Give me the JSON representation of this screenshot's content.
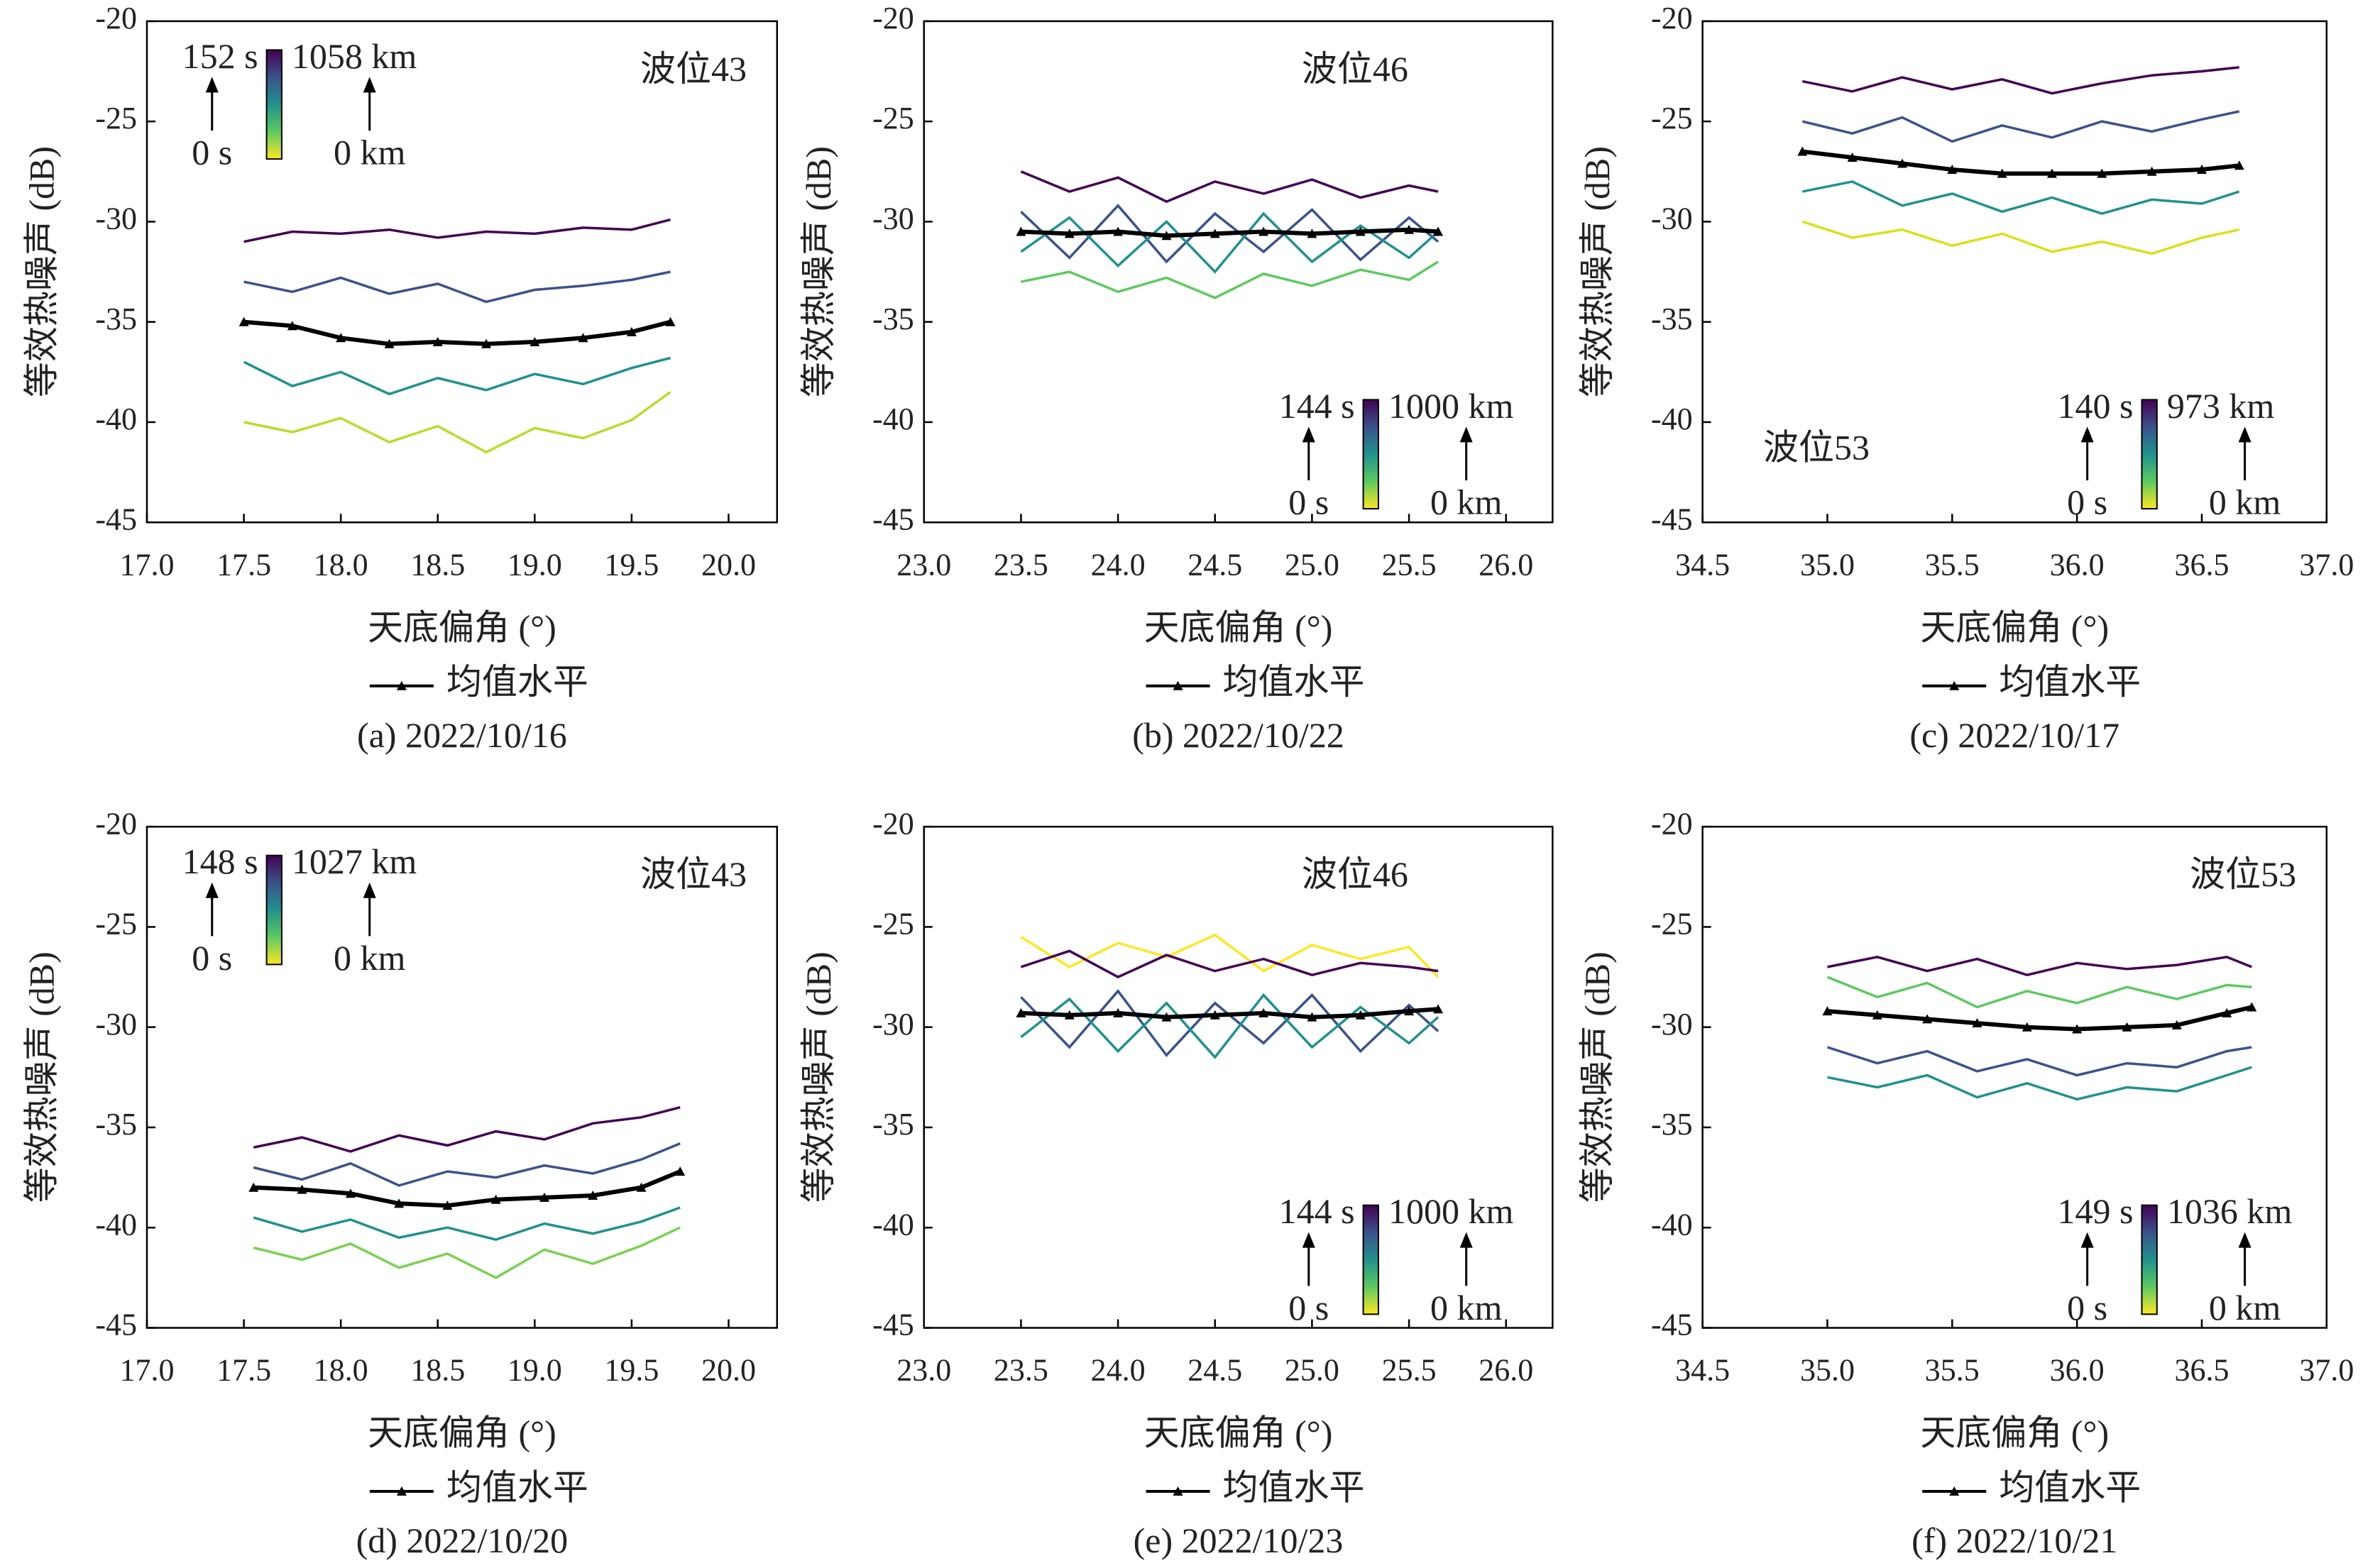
{
  "chart_data": [
    {
      "type": "line",
      "caption": "(a) 2022/10/16",
      "xlabel": "天底偏角 (°)",
      "ylabel": "等效热噪声 (dB)",
      "annotation": "波位43",
      "annotation_position": "top-right",
      "colorbar_labels": [
        "152 s",
        "0 s",
        "1058 km",
        "0 km"
      ],
      "colorbar_position": "top-left",
      "xlim": [
        17,
        20.25
      ],
      "xticks": [
        {
          "value": 17,
          "label": "17.0"
        },
        17.5,
        {
          "value": 18,
          "label": "18.0"
        },
        18.5,
        {
          "value": 19,
          "label": "19.0"
        },
        19.5,
        {
          "value": 20,
          "label": "20.0"
        }
      ],
      "ylim": [
        -45,
        -20
      ],
      "yticks": [
        -45,
        -40,
        -35,
        -30,
        -25,
        -20
      ],
      "x": [
        17.5,
        17.75,
        18,
        18.25,
        18.5,
        18.75,
        19,
        19.25,
        19.5,
        19.7
      ],
      "series": [
        {
          "color": "#440154",
          "values": [
            -31,
            -30.5,
            -30.6,
            -30.4,
            -30.8,
            -30.5,
            -30.6,
            -30.3,
            -30.4,
            -29.9
          ]
        },
        {
          "color": "#3b528b",
          "values": [
            -33,
            -33.5,
            -32.8,
            -33.6,
            -33.1,
            -34,
            -33.4,
            -33.2,
            -32.9,
            -32.5
          ]
        },
        {
          "color": "#21918c",
          "values": [
            -37,
            -38.2,
            -37.5,
            -38.6,
            -37.8,
            -38.4,
            -37.6,
            -38.1,
            -37.3,
            -36.8
          ]
        },
        {
          "color": "#b5de2b",
          "values": [
            -40,
            -40.5,
            -39.8,
            -41,
            -40.2,
            -41.5,
            -40.3,
            -40.8,
            -39.9,
            -38.5
          ]
        },
        {
          "name": "均值水平",
          "color": "#000000",
          "values": [
            -35,
            -35.2,
            -35.8,
            -36.1,
            -36,
            -36.1,
            -36,
            -35.8,
            -35.5,
            -35
          ]
        }
      ]
    },
    {
      "type": "line",
      "caption": "(b) 2022/10/22",
      "xlabel": "天底偏角 (°)",
      "ylabel": "等效热噪声 (dB)",
      "annotation": "波位46",
      "annotation_position": "top",
      "colorbar_labels": [
        "144 s",
        "0 s",
        "1000 km",
        "0 km"
      ],
      "colorbar_position": "bottom-right",
      "xlim": [
        23,
        26.24
      ],
      "xticks": [
        {
          "value": 23,
          "label": "23.0"
        },
        23.5,
        {
          "value": 24,
          "label": "24.0"
        },
        24.5,
        {
          "value": 25,
          "label": "25.0"
        },
        25.5,
        {
          "value": 26,
          "label": "26.0"
        }
      ],
      "ylim": [
        -45,
        -20
      ],
      "yticks": [
        -45,
        -40,
        -35,
        -30,
        -25,
        -20
      ],
      "x": [
        23.5,
        23.75,
        24,
        24.25,
        24.5,
        24.75,
        25,
        25.25,
        25.5,
        25.65
      ],
      "series": [
        {
          "color": "#440154",
          "values": [
            -27.5,
            -28.5,
            -27.8,
            -29,
            -28,
            -28.6,
            -27.9,
            -28.8,
            -28.2,
            -28.5
          ]
        },
        {
          "color": "#3b528b",
          "values": [
            -29.5,
            -31.8,
            -29.2,
            -32,
            -29.6,
            -31.5,
            -29.4,
            -31.9,
            -29.8,
            -31
          ]
        },
        {
          "color": "#21918c",
          "values": [
            -31.5,
            -29.8,
            -32.2,
            -30,
            -32.5,
            -29.6,
            -32,
            -30.2,
            -31.8,
            -30.5
          ]
        },
        {
          "color": "#5ec962",
          "values": [
            -33,
            -32.5,
            -33.5,
            -32.8,
            -33.8,
            -32.6,
            -33.2,
            -32.4,
            -32.9,
            -32
          ]
        },
        {
          "name": "均值水平",
          "color": "#000000",
          "values": [
            -30.5,
            -30.6,
            -30.5,
            -30.7,
            -30.6,
            -30.5,
            -30.6,
            -30.5,
            -30.4,
            -30.5
          ]
        }
      ]
    },
    {
      "type": "line",
      "caption": "(c) 2022/10/17",
      "xlabel": "天底偏角 (°)",
      "ylabel": "等效热噪声 (dB)",
      "annotation": "波位53",
      "annotation_position": "bottom-left",
      "colorbar_labels": [
        "140 s",
        "0 s",
        "973 km",
        "0 km"
      ],
      "colorbar_position": "bottom-right",
      "xlim": [
        34.5,
        37
      ],
      "xticks": [
        34.5,
        {
          "value": 35,
          "label": "35.0"
        },
        35.5,
        {
          "value": 36,
          "label": "36.0"
        },
        36.5,
        {
          "value": 37,
          "label": "37.0"
        }
      ],
      "ylim": [
        -45,
        -20
      ],
      "yticks": [
        -45,
        -40,
        -35,
        -30,
        -25,
        -20
      ],
      "x": [
        34.9,
        35.1,
        35.3,
        35.5,
        35.7,
        35.9,
        36.1,
        36.3,
        36.5,
        36.65
      ],
      "series": [
        {
          "color": "#440154",
          "values": [
            -23,
            -23.5,
            -22.8,
            -23.4,
            -22.9,
            -23.6,
            -23.1,
            -22.7,
            -22.5,
            -22.3
          ]
        },
        {
          "color": "#3b528b",
          "values": [
            -25,
            -25.6,
            -24.8,
            -26,
            -25.2,
            -25.8,
            -25,
            -25.5,
            -24.9,
            -24.5
          ]
        },
        {
          "color": "#21918c",
          "values": [
            -28.5,
            -28,
            -29.2,
            -28.6,
            -29.5,
            -28.8,
            -29.6,
            -28.9,
            -29.1,
            -28.5
          ]
        },
        {
          "color": "#d8e219",
          "values": [
            -30,
            -30.8,
            -30.4,
            -31.2,
            -30.6,
            -31.5,
            -31,
            -31.6,
            -30.8,
            -30.4
          ]
        },
        {
          "name": "均值水平",
          "color": "#000000",
          "values": [
            -26.5,
            -26.8,
            -27.1,
            -27.4,
            -27.6,
            -27.6,
            -27.6,
            -27.5,
            -27.4,
            -27.2
          ]
        }
      ]
    },
    {
      "type": "line",
      "caption": "(d) 2022/10/20",
      "xlabel": "天底偏角 (°)",
      "ylabel": "等效热噪声 (dB)",
      "annotation": "波位43",
      "annotation_position": "top-right",
      "colorbar_labels": [
        "148 s",
        "0 s",
        "1027 km",
        "0 km"
      ],
      "colorbar_position": "top-left",
      "xlim": [
        17,
        20.25
      ],
      "xticks": [
        {
          "value": 17,
          "label": "17.0"
        },
        17.5,
        {
          "value": 18,
          "label": "18.0"
        },
        18.5,
        {
          "value": 19,
          "label": "19.0"
        },
        19.5,
        {
          "value": 20,
          "label": "20.0"
        }
      ],
      "ylim": [
        -45,
        -20
      ],
      "yticks": [
        -45,
        -40,
        -35,
        -30,
        -25,
        -20
      ],
      "x": [
        17.55,
        17.8,
        18.05,
        18.3,
        18.55,
        18.8,
        19.05,
        19.3,
        19.55,
        19.75
      ],
      "series": [
        {
          "color": "#440154",
          "values": [
            -36,
            -35.5,
            -36.2,
            -35.4,
            -35.9,
            -35.2,
            -35.6,
            -34.8,
            -34.5,
            -34
          ]
        },
        {
          "color": "#3b528b",
          "values": [
            -37,
            -37.6,
            -36.8,
            -37.9,
            -37.2,
            -37.5,
            -36.9,
            -37.3,
            -36.6,
            -35.8
          ]
        },
        {
          "color": "#21918c",
          "values": [
            -39.5,
            -40.2,
            -39.6,
            -40.5,
            -40,
            -40.6,
            -39.8,
            -40.3,
            -39.7,
            -39
          ]
        },
        {
          "color": "#7ad151",
          "values": [
            -41,
            -41.6,
            -40.8,
            -42,
            -41.3,
            -42.5,
            -41.1,
            -41.8,
            -40.9,
            -40
          ]
        },
        {
          "name": "均值水平",
          "color": "#000000",
          "values": [
            -38,
            -38.1,
            -38.3,
            -38.8,
            -38.9,
            -38.6,
            -38.5,
            -38.4,
            -38,
            -37.2
          ]
        }
      ]
    },
    {
      "type": "line",
      "caption": "(e) 2022/10/23",
      "xlabel": "天底偏角 (°)",
      "ylabel": "等效热噪声 (dB)",
      "annotation": "波位46",
      "annotation_position": "top",
      "colorbar_labels": [
        "144 s",
        "0 s",
        "1000 km",
        "0 km"
      ],
      "colorbar_position": "bottom-right",
      "xlim": [
        23,
        26.24
      ],
      "xticks": [
        {
          "value": 23,
          "label": "23.0"
        },
        23.5,
        {
          "value": 24,
          "label": "24.0"
        },
        24.5,
        {
          "value": 25,
          "label": "25.0"
        },
        25.5,
        {
          "value": 26,
          "label": "26.0"
        }
      ],
      "ylim": [
        -45,
        -20
      ],
      "yticks": [
        -45,
        -40,
        -35,
        -30,
        -25,
        -20
      ],
      "x": [
        23.5,
        23.75,
        24,
        24.25,
        24.5,
        24.75,
        25,
        25.25,
        25.5,
        25.65
      ],
      "series": [
        {
          "color": "#fde725",
          "values": [
            -25.5,
            -27,
            -25.8,
            -26.5,
            -25.4,
            -27.2,
            -25.9,
            -26.6,
            -26,
            -27.5
          ]
        },
        {
          "color": "#440154",
          "values": [
            -27,
            -26.2,
            -27.5,
            -26.4,
            -27.2,
            -26.6,
            -27.4,
            -26.8,
            -27,
            -27.2
          ]
        },
        {
          "color": "#3b528b",
          "values": [
            -28.5,
            -31,
            -28.2,
            -31.4,
            -28.8,
            -30.8,
            -28.4,
            -31.2,
            -28.9,
            -30.2
          ]
        },
        {
          "color": "#21918c",
          "values": [
            -30.5,
            -28.6,
            -31.2,
            -28.8,
            -31.5,
            -28.4,
            -31,
            -29,
            -30.8,
            -29.5
          ]
        },
        {
          "name": "均值水平",
          "color": "#000000",
          "values": [
            -29.3,
            -29.4,
            -29.3,
            -29.5,
            -29.4,
            -29.3,
            -29.5,
            -29.4,
            -29.2,
            -29.1
          ]
        }
      ]
    },
    {
      "type": "line",
      "caption": "(f) 2022/10/21",
      "xlabel": "天底偏角 (°)",
      "ylabel": "等效热噪声 (dB)",
      "annotation": "波位53",
      "annotation_position": "top-right",
      "colorbar_labels": [
        "149 s",
        "0 s",
        "1036 km",
        "0 km"
      ],
      "colorbar_position": "bottom-right",
      "xlim": [
        34.5,
        37
      ],
      "xticks": [
        34.5,
        {
          "value": 35,
          "label": "35.0"
        },
        35.5,
        {
          "value": 36,
          "label": "36.0"
        },
        36.5,
        {
          "value": 37,
          "label": "37.0"
        }
      ],
      "ylim": [
        -45,
        -20
      ],
      "yticks": [
        -45,
        -40,
        -35,
        -30,
        -25,
        -20
      ],
      "x": [
        35,
        35.2,
        35.4,
        35.6,
        35.8,
        36,
        36.2,
        36.4,
        36.6,
        36.7
      ],
      "series": [
        {
          "color": "#440154",
          "values": [
            -27,
            -26.5,
            -27.2,
            -26.6,
            -27.4,
            -26.8,
            -27.1,
            -26.9,
            -26.5,
            -27
          ]
        },
        {
          "color": "#5ec962",
          "values": [
            -27.5,
            -28.5,
            -27.8,
            -29,
            -28.2,
            -28.8,
            -28,
            -28.6,
            -27.9,
            -28
          ]
        },
        {
          "color": "#3b528b",
          "values": [
            -31,
            -31.8,
            -31.2,
            -32.2,
            -31.6,
            -32.4,
            -31.8,
            -32,
            -31.2,
            -31
          ]
        },
        {
          "color": "#21918c",
          "values": [
            -32.5,
            -33,
            -32.4,
            -33.5,
            -32.8,
            -33.6,
            -33,
            -33.2,
            -32.4,
            -32
          ]
        },
        {
          "name": "均值水平",
          "color": "#000000",
          "values": [
            -29.2,
            -29.4,
            -29.6,
            -29.8,
            -30,
            -30.1,
            -30,
            -29.9,
            -29.3,
            -29
          ]
        }
      ]
    }
  ]
}
